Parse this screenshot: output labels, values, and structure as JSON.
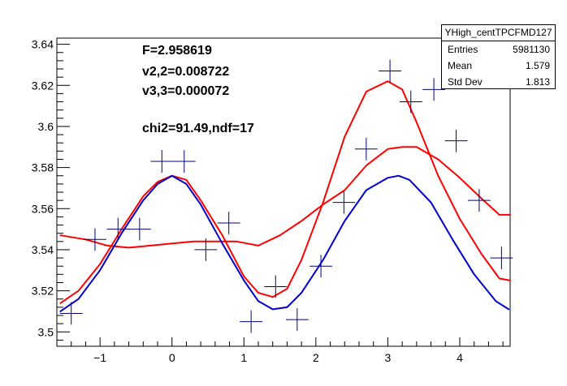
{
  "chart_data": {
    "type": "scatter",
    "title": "",
    "xlabel": "",
    "ylabel": "",
    "xlim": [
      -1.6,
      4.7
    ],
    "ylim": [
      3.493,
      3.643
    ],
    "x_ticks": [
      -1,
      0,
      1,
      2,
      3,
      4
    ],
    "x_tick_labels": [
      "−1",
      "0",
      "1",
      "2",
      "3",
      "4"
    ],
    "y_ticks": [
      3.5,
      3.52,
      3.54,
      3.56,
      3.58,
      3.6,
      3.62,
      3.64
    ],
    "y_tick_labels": [
      "3.5",
      "3.52",
      "3.54",
      "3.56",
      "3.58",
      "3.6",
      "3.62",
      "3.64"
    ],
    "x_bin_half_width": 0.157,
    "points": {
      "x": [
        -1.4,
        -1.07,
        -0.75,
        -0.45,
        -0.14,
        0.17,
        0.47,
        0.79,
        1.1,
        1.44,
        1.74,
        2.07,
        2.39,
        2.7,
        3.03,
        3.32,
        3.64,
        3.95,
        4.27,
        4.58
      ],
      "y": [
        3.509,
        3.545,
        3.55,
        3.55,
        3.583,
        3.583,
        3.54,
        3.553,
        3.505,
        3.522,
        3.506,
        3.532,
        3.563,
        3.589,
        3.627,
        3.612,
        3.618,
        3.593,
        3.564,
        3.536
      ],
      "yerr": [
        0.0055,
        0.0055,
        0.0055,
        0.0055,
        0.0055,
        0.0055,
        0.0055,
        0.0055,
        0.0055,
        0.0055,
        0.0055,
        0.0055,
        0.0055,
        0.0055,
        0.0055,
        0.0055,
        0.0055,
        0.0055,
        0.0055,
        0.0055
      ],
      "color": "#00007f"
    },
    "curves": [
      {
        "x": [
          -1.55,
          -1.2,
          -0.9,
          -0.6,
          -0.3,
          0.0,
          0.3,
          0.6,
          0.9,
          1.2,
          1.5,
          1.8,
          2.1,
          2.4,
          2.7,
          3.0,
          3.2,
          3.4,
          3.7,
          4.0,
          4.3,
          4.55,
          4.7
        ],
        "y": [
          3.547,
          3.545,
          3.542,
          3.541,
          3.542,
          3.543,
          3.544,
          3.544,
          3.544,
          3.542,
          3.547,
          3.554,
          3.562,
          3.569,
          3.581,
          3.589,
          3.59,
          3.59,
          3.584,
          3.575,
          3.565,
          3.557,
          3.557
        ],
        "color": "#ff0000"
      },
      {
        "x": [
          -1.55,
          -1.3,
          -1.0,
          -0.7,
          -0.4,
          -0.2,
          0.0,
          0.2,
          0.4,
          0.7,
          1.0,
          1.2,
          1.4,
          1.6,
          1.8,
          2.1,
          2.4,
          2.7,
          3.0,
          3.2,
          3.4,
          3.7,
          4.0,
          4.3,
          4.55,
          4.7
        ],
        "y": [
          3.514,
          3.52,
          3.533,
          3.55,
          3.566,
          3.573,
          3.576,
          3.574,
          3.564,
          3.547,
          3.527,
          3.519,
          3.517,
          3.521,
          3.535,
          3.563,
          3.595,
          3.617,
          3.622,
          3.618,
          3.602,
          3.576,
          3.555,
          3.538,
          3.526,
          3.525
        ],
        "color": "#ff0000"
      },
      {
        "x": [
          -1.55,
          -1.3,
          -1.0,
          -0.7,
          -0.4,
          -0.2,
          0.0,
          0.2,
          0.4,
          0.7,
          1.0,
          1.2,
          1.4,
          1.6,
          1.8,
          2.1,
          2.4,
          2.7,
          3.0,
          3.15,
          3.3,
          3.6,
          3.9,
          4.2,
          4.5,
          4.68
        ],
        "y": [
          3.51,
          3.516,
          3.53,
          3.548,
          3.564,
          3.572,
          3.576,
          3.572,
          3.562,
          3.543,
          3.525,
          3.515,
          3.511,
          3.512,
          3.519,
          3.535,
          3.554,
          3.569,
          3.575,
          3.576,
          3.574,
          3.563,
          3.545,
          3.528,
          3.515,
          3.511
        ],
        "color": "#0000cc"
      }
    ],
    "fit_text": [
      "F=2.958619",
      "v2,2=0.008722",
      "v3,3=0.000072",
      "chi2=91.49,ndf=17"
    ],
    "stats_box": {
      "title": "YHigh_centTPCFMD127",
      "rows": [
        {
          "label": "Entries",
          "value": "5981130"
        },
        {
          "label": "Mean",
          "value": "1.579"
        },
        {
          "label": "Std Dev",
          "value": "1.813"
        }
      ]
    }
  }
}
